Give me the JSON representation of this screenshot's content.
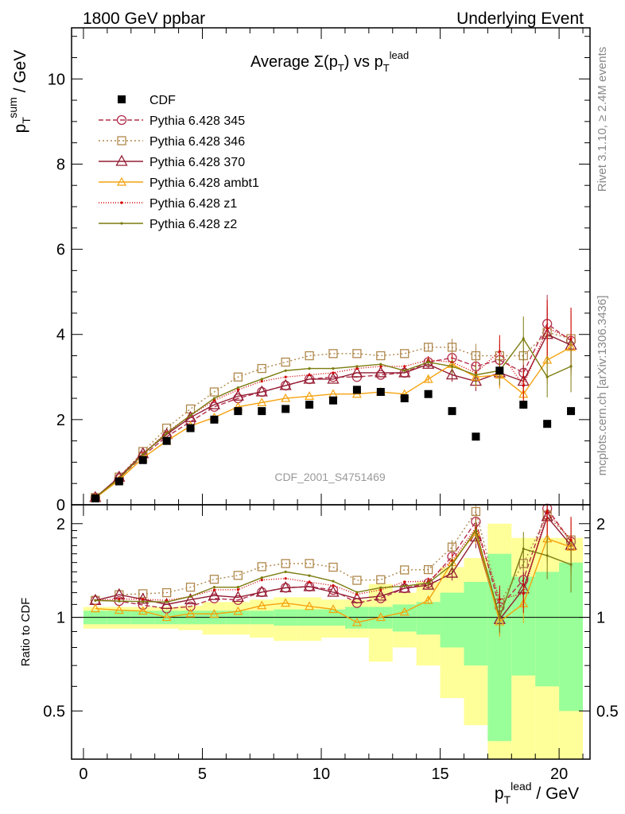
{
  "header": {
    "left": "1800 GeV ppbar",
    "right": "Underlying Event"
  },
  "side_labels": {
    "top": "Rivet 3.1.10, ≥ 2.4M events",
    "bottom": "mcplots.cern.ch [arXiv:1306.3436]"
  },
  "chart_data": {
    "type": "line",
    "title": "Average Σ(p_T) vs p_T^lead",
    "watermark": "CDF_2001_S4751469",
    "xlabel": "p_T^lead / GeV",
    "ylabel": "p_T^sum / GeV",
    "ratio_ylabel": "Ratio to CDF",
    "xlim": [
      -0.5,
      21.3
    ],
    "ylim": [
      0,
      11.2
    ],
    "ratio_ylim": [
      0.35,
      2.3
    ],
    "x_ticks": [
      "0",
      "5",
      "10",
      "15",
      "20"
    ],
    "y_ticks": [
      "0",
      "2",
      "4",
      "6",
      "8",
      "10"
    ],
    "ratio_ticks": [
      "0.5",
      "1",
      "2"
    ],
    "x": [
      0.5,
      1.5,
      2.5,
      3.5,
      4.5,
      5.5,
      6.5,
      7.5,
      8.5,
      9.5,
      10.5,
      11.5,
      12.5,
      13.5,
      14.5,
      15.5,
      16.5,
      17.5,
      18.5,
      19.5,
      20.5
    ],
    "data": {
      "name": "CDF",
      "color": "#000000",
      "values": [
        0.15,
        0.55,
        1.05,
        1.5,
        1.8,
        2.0,
        2.2,
        2.2,
        2.25,
        2.35,
        2.45,
        2.7,
        2.65,
        2.5,
        2.6,
        2.2,
        1.6,
        3.15,
        2.35,
        1.9,
        2.2
      ]
    },
    "ratio_bands": {
      "inner": [
        0.05,
        0.05,
        0.05,
        0.05,
        0.05,
        0.05,
        0.05,
        0.05,
        0.06,
        0.06,
        0.06,
        0.08,
        0.08,
        0.1,
        0.12,
        0.2,
        0.3,
        0.6,
        0.35,
        0.4,
        0.5
      ],
      "outer": [
        0.08,
        0.08,
        0.08,
        0.08,
        0.09,
        0.12,
        0.12,
        0.14,
        0.16,
        0.16,
        0.14,
        0.14,
        0.28,
        0.2,
        0.3,
        0.45,
        0.55,
        1.0,
        0.8,
        0.8,
        0.8
      ]
    },
    "series": [
      {
        "name": "Pythia 6.428 345",
        "color": "#b2304d",
        "dash": "6,3",
        "marker": "circle",
        "values": [
          0.17,
          0.62,
          1.15,
          1.6,
          1.95,
          2.3,
          2.5,
          2.65,
          2.8,
          2.95,
          3.0,
          3.0,
          3.05,
          3.1,
          3.35,
          3.45,
          3.25,
          3.4,
          3.1,
          4.25,
          3.85
        ]
      },
      {
        "name": "Pythia 6.428 346",
        "color": "#b0884c",
        "dash": "2,3",
        "marker": "square",
        "values": [
          0.17,
          0.65,
          1.25,
          1.8,
          2.25,
          2.65,
          3.0,
          3.2,
          3.35,
          3.5,
          3.55,
          3.55,
          3.5,
          3.55,
          3.7,
          3.7,
          3.5,
          3.5,
          3.5,
          4.05,
          3.9
        ]
      },
      {
        "name": "Pythia 6.428 370",
        "color": "#921d32",
        "dash": "",
        "marker": "triangle",
        "values": [
          0.17,
          0.65,
          1.2,
          1.65,
          2.05,
          2.35,
          2.55,
          2.65,
          2.8,
          2.95,
          2.95,
          3.1,
          3.1,
          3.1,
          3.3,
          3.05,
          2.9,
          3.1,
          2.9,
          4.0,
          3.75
        ]
      },
      {
        "name": "Pythia 6.428 ambt1",
        "color": "#f5a20e",
        "dash": "",
        "marker": "triangle-small",
        "values": [
          0.16,
          0.58,
          1.1,
          1.5,
          1.85,
          2.05,
          2.3,
          2.4,
          2.5,
          2.55,
          2.6,
          2.6,
          2.65,
          2.6,
          2.95,
          3.3,
          3.0,
          3.05,
          2.6,
          3.4,
          3.7
        ]
      },
      {
        "name": "Pythia 6.428 z1",
        "color": "#d40000",
        "dash": "1,2",
        "marker": "dot",
        "values": [
          0.17,
          0.63,
          1.2,
          1.7,
          2.1,
          2.45,
          2.7,
          2.9,
          3.0,
          3.05,
          3.1,
          3.2,
          3.25,
          3.25,
          3.4,
          3.35,
          3.1,
          3.6,
          2.8,
          4.15,
          3.9
        ]
      },
      {
        "name": "Pythia 6.428 z2",
        "color": "#7c7c10",
        "dash": "",
        "marker": "dot",
        "values": [
          0.17,
          0.62,
          1.18,
          1.68,
          2.1,
          2.5,
          2.75,
          2.95,
          3.15,
          3.2,
          3.2,
          3.25,
          3.3,
          3.15,
          3.35,
          3.25,
          3.05,
          3.15,
          3.9,
          3.0,
          3.25
        ]
      }
    ]
  }
}
